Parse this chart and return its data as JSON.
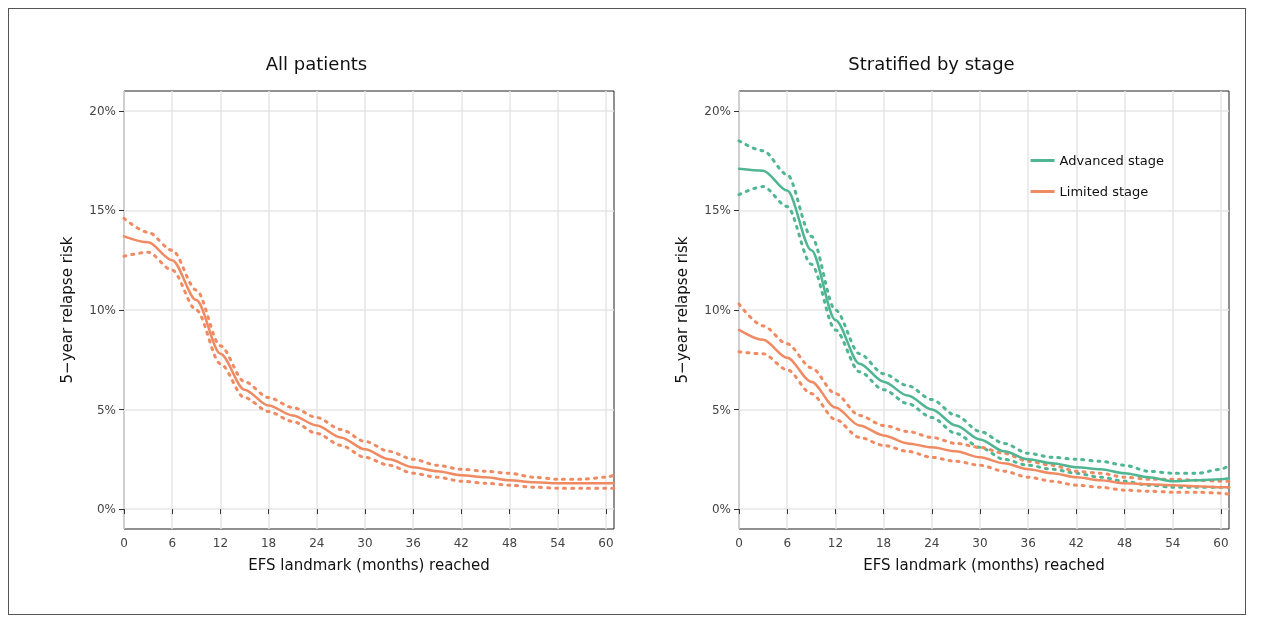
{
  "chart_data": [
    {
      "type": "line",
      "title": "All patients",
      "xlabel": "EFS landmark (months) reached",
      "ylabel": "5−year relapse risk",
      "xlim": [
        0,
        61
      ],
      "ylim": [
        -1,
        21
      ],
      "xticks": [
        0,
        6,
        12,
        18,
        24,
        30,
        36,
        42,
        48,
        54,
        60
      ],
      "yticks": [
        {
          "value": 0,
          "label": "0%"
        },
        {
          "value": 5,
          "label": "5%"
        },
        {
          "value": 10,
          "label": "10%"
        },
        {
          "value": 15,
          "label": "15%"
        },
        {
          "value": 20,
          "label": "20%"
        }
      ],
      "grid": true,
      "legend": false,
      "marker": "none",
      "x": [
        0,
        3,
        6,
        9,
        12,
        15,
        18,
        21,
        24,
        27,
        30,
        33,
        36,
        39,
        42,
        45,
        48,
        51,
        54,
        57,
        60,
        61
      ],
      "series": [
        {
          "color": "#ef8a62",
          "line_style": "solid",
          "values": [
            13.7,
            13.4,
            12.5,
            10.5,
            7.8,
            6.0,
            5.2,
            4.7,
            4.2,
            3.6,
            3.0,
            2.5,
            2.1,
            1.9,
            1.7,
            1.6,
            1.45,
            1.35,
            1.3,
            1.3,
            1.3,
            1.3
          ]
        },
        {
          "color": "#ef8a62",
          "line_style": "dotted",
          "values": [
            14.6,
            13.9,
            13.0,
            11.0,
            8.2,
            6.4,
            5.6,
            5.1,
            4.6,
            4.0,
            3.4,
            2.9,
            2.5,
            2.2,
            2.0,
            1.9,
            1.8,
            1.6,
            1.5,
            1.5,
            1.6,
            1.7
          ]
        },
        {
          "color": "#ef8a62",
          "line_style": "dotted",
          "values": [
            12.7,
            12.9,
            12.0,
            10.0,
            7.3,
            5.6,
            4.9,
            4.4,
            3.8,
            3.2,
            2.6,
            2.2,
            1.8,
            1.6,
            1.4,
            1.3,
            1.2,
            1.1,
            1.05,
            1.05,
            1.05,
            1.05
          ]
        }
      ]
    },
    {
      "type": "line",
      "title": "Stratified by stage",
      "xlabel": "EFS landmark (months) reached",
      "ylabel": "5−year relapse risk",
      "xlim": [
        0,
        61
      ],
      "ylim": [
        -1,
        21
      ],
      "xticks": [
        0,
        6,
        12,
        18,
        24,
        30,
        36,
        42,
        48,
        54,
        60
      ],
      "yticks": [
        {
          "value": 0,
          "label": "0%"
        },
        {
          "value": 5,
          "label": "5%"
        },
        {
          "value": 10,
          "label": "10%"
        },
        {
          "value": 15,
          "label": "15%"
        },
        {
          "value": 20,
          "label": "20%"
        }
      ],
      "grid": true,
      "legend": "top right",
      "marker": "none",
      "x": [
        0,
        3,
        6,
        9,
        12,
        15,
        18,
        21,
        24,
        27,
        30,
        33,
        36,
        39,
        42,
        45,
        48,
        51,
        54,
        57,
        60,
        61
      ],
      "series": [
        {
          "name": "Advanced stage",
          "color": "#4fb592",
          "line_style": "solid",
          "values": [
            17.1,
            17.0,
            16.0,
            13.0,
            9.5,
            7.3,
            6.4,
            5.7,
            5.0,
            4.2,
            3.5,
            2.9,
            2.5,
            2.3,
            2.1,
            2.0,
            1.8,
            1.6,
            1.4,
            1.45,
            1.5,
            1.55
          ]
        },
        {
          "color": "#4fb592",
          "line_style": "dotted",
          "values": [
            18.5,
            18.0,
            16.8,
            13.7,
            10.0,
            7.8,
            6.8,
            6.2,
            5.5,
            4.7,
            3.9,
            3.3,
            2.8,
            2.6,
            2.5,
            2.4,
            2.2,
            1.9,
            1.8,
            1.8,
            2.0,
            2.2
          ]
        },
        {
          "color": "#4fb592",
          "line_style": "dotted",
          "values": [
            15.8,
            16.2,
            15.2,
            12.3,
            9.0,
            6.9,
            6.0,
            5.3,
            4.6,
            3.8,
            3.1,
            2.5,
            2.2,
            2.0,
            1.8,
            1.6,
            1.4,
            1.2,
            1.1,
            1.1,
            1.1,
            1.1
          ]
        },
        {
          "name": "Limited stage",
          "color": "#ef8a62",
          "line_style": "solid",
          "values": [
            9.0,
            8.5,
            7.6,
            6.4,
            5.1,
            4.2,
            3.7,
            3.3,
            3.1,
            2.9,
            2.6,
            2.3,
            2.0,
            1.8,
            1.6,
            1.45,
            1.3,
            1.25,
            1.2,
            1.15,
            1.1,
            1.1
          ]
        },
        {
          "color": "#ef8a62",
          "line_style": "dotted",
          "values": [
            10.3,
            9.2,
            8.3,
            7.1,
            5.8,
            4.7,
            4.2,
            3.9,
            3.6,
            3.3,
            3.1,
            2.8,
            2.4,
            2.2,
            1.9,
            1.8,
            1.6,
            1.5,
            1.5,
            1.45,
            1.4,
            1.4
          ]
        },
        {
          "color": "#ef8a62",
          "line_style": "dotted",
          "values": [
            7.9,
            7.8,
            7.0,
            5.8,
            4.5,
            3.6,
            3.2,
            2.9,
            2.6,
            2.4,
            2.2,
            1.9,
            1.6,
            1.4,
            1.2,
            1.1,
            0.95,
            0.9,
            0.85,
            0.85,
            0.8,
            0.75
          ]
        }
      ]
    }
  ]
}
